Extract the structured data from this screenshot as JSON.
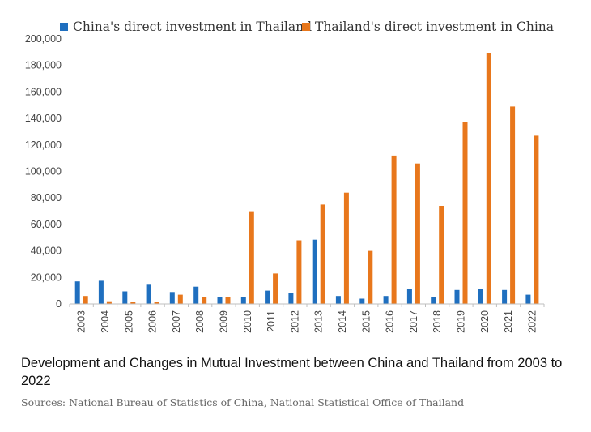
{
  "colors": {
    "china": "#1f6fbf",
    "thailand": "#e8771c",
    "axis": "#bfbfbf"
  },
  "chart_data": {
    "type": "bar",
    "categories": [
      "2003",
      "2004",
      "2005",
      "2006",
      "2007",
      "2008",
      "2009",
      "2010",
      "2011",
      "2012",
      "2013",
      "2014",
      "2015",
      "2016",
      "2017",
      "2018",
      "2019",
      "2020",
      "2021",
      "2022"
    ],
    "series": [
      {
        "name": "China's direct investment in Thailand",
        "values": [
          17000,
          17500,
          9500,
          14500,
          9000,
          13000,
          5000,
          5500,
          10000,
          8000,
          48500,
          6000,
          4000,
          6000,
          11000,
          5000,
          10500,
          11000,
          10500,
          7000
        ]
      },
      {
        "name": "Thailand's direct investment in China",
        "values": [
          6000,
          2000,
          1500,
          1500,
          7000,
          5000,
          5000,
          70000,
          23000,
          48000,
          75000,
          84000,
          40000,
          112000,
          106000,
          74000,
          137000,
          189000,
          149000,
          127000
        ]
      }
    ],
    "yticks": [
      "0",
      "20,000",
      "40,000",
      "60,000",
      "80,000",
      "100,000",
      "120,000",
      "140,000",
      "160,000",
      "180,000",
      "200,000"
    ],
    "ylim": [
      0,
      200000
    ],
    "grid": false,
    "legend": "top"
  },
  "caption": "Development and Changes in Mutual Investment between China and Thailand from 2003 to 2022",
  "source": "Sources: National Bureau of Statistics of China, National Statistical Office of Thailand"
}
